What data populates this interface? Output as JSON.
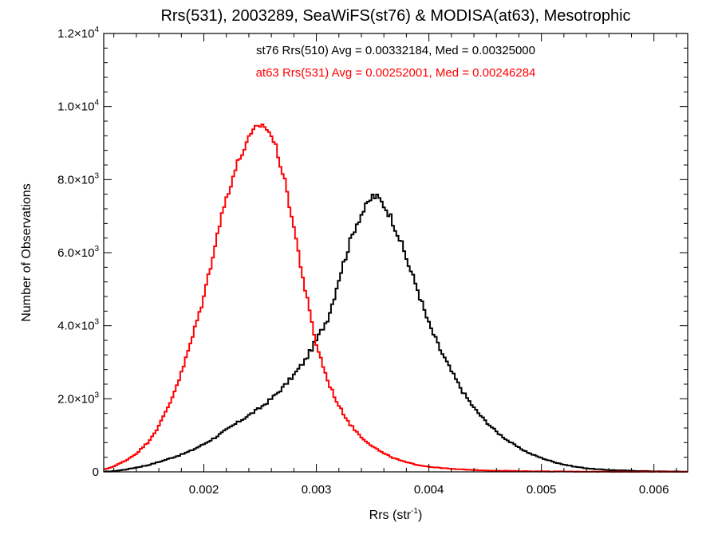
{
  "chart_data": {
    "type": "histogram",
    "title": "Rrs(531), 2003289, SeaWiFS(st76) & MODISA(at63), Mesotrophic",
    "xlabel_main": "Rrs (str",
    "xlabel_sup": "-1",
    "xlabel_close": ")",
    "ylabel": "Number of Observations",
    "xlim": [
      0.00111,
      0.0063
    ],
    "ylim": [
      0,
      12000
    ],
    "x_ticks": [
      {
        "value": 0.002,
        "label": "0.002"
      },
      {
        "value": 0.003,
        "label": "0.003"
      },
      {
        "value": 0.004,
        "label": "0.004"
      },
      {
        "value": 0.005,
        "label": "0.005"
      },
      {
        "value": 0.006,
        "label": "0.006"
      }
    ],
    "y_ticks": [
      {
        "value": 0,
        "mant": "0",
        "exp": ""
      },
      {
        "value": 2000,
        "mant": "2.0×10",
        "exp": "3"
      },
      {
        "value": 4000,
        "mant": "4.0×10",
        "exp": "3"
      },
      {
        "value": 6000,
        "mant": "6.0×10",
        "exp": "3"
      },
      {
        "value": 8000,
        "mant": "8.0×10",
        "exp": "3"
      },
      {
        "value": 10000,
        "mant": "1.0×10",
        "exp": "4"
      },
      {
        "value": 12000,
        "mant": "1.2×10",
        "exp": "4"
      }
    ],
    "annotations": [
      {
        "text": "st76 Rrs(510) Avg = 0.00332184, Med = 0.00325000",
        "color": "#000000"
      },
      {
        "text": "at63 Rrs(531) Avg = 0.00252001, Med = 0.00246284",
        "color": "#ff0000"
      }
    ],
    "series": [
      {
        "color": "#000000",
        "points": [
          [
            0.0011,
            0
          ],
          [
            0.0012,
            20
          ],
          [
            0.0013,
            60
          ],
          [
            0.0014,
            120
          ],
          [
            0.0015,
            180
          ],
          [
            0.0016,
            270
          ],
          [
            0.0017,
            370
          ],
          [
            0.0018,
            470
          ],
          [
            0.0019,
            600
          ],
          [
            0.002,
            760
          ],
          [
            0.0021,
            940
          ],
          [
            0.0022,
            1150
          ],
          [
            0.0023,
            1350
          ],
          [
            0.0024,
            1550
          ],
          [
            0.0025,
            1750
          ],
          [
            0.0026,
            2000
          ],
          [
            0.0027,
            2300
          ],
          [
            0.0028,
            2650
          ],
          [
            0.0029,
            3050
          ],
          [
            0.003,
            3600
          ],
          [
            0.0031,
            4200
          ],
          [
            0.00315,
            4700
          ],
          [
            0.0032,
            5300
          ],
          [
            0.00325,
            5800
          ],
          [
            0.0033,
            6300
          ],
          [
            0.00335,
            6750
          ],
          [
            0.0034,
            7050
          ],
          [
            0.00345,
            7300
          ],
          [
            0.0035,
            7550
          ],
          [
            0.00355,
            7500
          ],
          [
            0.0036,
            7300
          ],
          [
            0.00365,
            7050
          ],
          [
            0.0037,
            6700
          ],
          [
            0.00375,
            6300
          ],
          [
            0.0038,
            5850
          ],
          [
            0.00385,
            5400
          ],
          [
            0.0039,
            5000
          ],
          [
            0.00395,
            4500
          ],
          [
            0.004,
            4050
          ],
          [
            0.0041,
            3350
          ],
          [
            0.0042,
            2750
          ],
          [
            0.0043,
            2200
          ],
          [
            0.0044,
            1750
          ],
          [
            0.0045,
            1400
          ],
          [
            0.0046,
            1100
          ],
          [
            0.0047,
            860
          ],
          [
            0.0048,
            660
          ],
          [
            0.0049,
            500
          ],
          [
            0.005,
            380
          ],
          [
            0.0051,
            280
          ],
          [
            0.0052,
            200
          ],
          [
            0.0053,
            140
          ],
          [
            0.0054,
            100
          ],
          [
            0.0055,
            70
          ],
          [
            0.0056,
            50
          ],
          [
            0.0058,
            30
          ],
          [
            0.006,
            15
          ],
          [
            0.0063,
            5
          ]
        ]
      },
      {
        "color": "#ff0000",
        "points": [
          [
            0.0011,
            50
          ],
          [
            0.0012,
            150
          ],
          [
            0.0013,
            300
          ],
          [
            0.0014,
            500
          ],
          [
            0.0015,
            800
          ],
          [
            0.0016,
            1250
          ],
          [
            0.0017,
            1900
          ],
          [
            0.0018,
            2700
          ],
          [
            0.0019,
            3700
          ],
          [
            0.002,
            4800
          ],
          [
            0.00205,
            5500
          ],
          [
            0.0021,
            6250
          ],
          [
            0.00215,
            6900
          ],
          [
            0.0022,
            7500
          ],
          [
            0.00225,
            8000
          ],
          [
            0.0023,
            8450
          ],
          [
            0.00235,
            8800
          ],
          [
            0.0024,
            9100
          ],
          [
            0.00245,
            9350
          ],
          [
            0.0025,
            9500
          ],
          [
            0.00255,
            9450
          ],
          [
            0.0026,
            9200
          ],
          [
            0.00265,
            8800
          ],
          [
            0.0027,
            8200
          ],
          [
            0.00275,
            7500
          ],
          [
            0.0028,
            6700
          ],
          [
            0.00285,
            5850
          ],
          [
            0.0029,
            5000
          ],
          [
            0.00295,
            4200
          ],
          [
            0.003,
            3500
          ],
          [
            0.0031,
            2500
          ],
          [
            0.0032,
            1800
          ],
          [
            0.0033,
            1300
          ],
          [
            0.0034,
            950
          ],
          [
            0.0035,
            700
          ],
          [
            0.0036,
            500
          ],
          [
            0.0037,
            360
          ],
          [
            0.0038,
            260
          ],
          [
            0.0039,
            190
          ],
          [
            0.004,
            140
          ],
          [
            0.0042,
            80
          ],
          [
            0.0044,
            50
          ],
          [
            0.0046,
            30
          ],
          [
            0.005,
            12
          ],
          [
            0.0055,
            5
          ],
          [
            0.0063,
            2
          ]
        ]
      }
    ]
  }
}
